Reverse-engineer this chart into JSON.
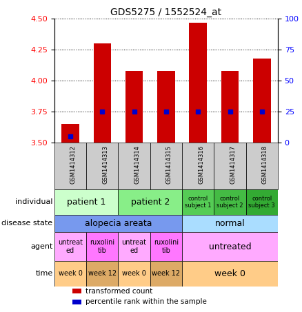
{
  "title": "GDS5275 / 1552524_at",
  "samples": [
    "GSM1414312",
    "GSM1414313",
    "GSM1414314",
    "GSM1414315",
    "GSM1414316",
    "GSM1414317",
    "GSM1414318"
  ],
  "transformed_count": [
    3.65,
    4.3,
    4.08,
    4.08,
    4.47,
    4.08,
    4.18
  ],
  "percentile_rank": [
    5,
    25,
    25,
    25,
    25,
    25,
    25
  ],
  "ylim_left": [
    3.5,
    4.5
  ],
  "ylim_right": [
    0,
    100
  ],
  "yticks_left": [
    3.5,
    3.75,
    4.0,
    4.25,
    4.5
  ],
  "yticks_right": [
    0,
    25,
    50,
    75,
    100
  ],
  "bar_color": "#cc0000",
  "dot_color": "#0000cc",
  "sample_box_color": "#cccccc",
  "annotation_rows": {
    "individual": {
      "label": "individual",
      "groups": [
        {
          "text": "patient 1",
          "span": [
            0,
            2
          ],
          "color": "#ccffcc",
          "fontsize": 9
        },
        {
          "text": "patient 2",
          "span": [
            2,
            4
          ],
          "color": "#88ee88",
          "fontsize": 9
        },
        {
          "text": "control\nsubject 1",
          "span": [
            4,
            5
          ],
          "color": "#55cc55",
          "fontsize": 6
        },
        {
          "text": "control\nsubject 2",
          "span": [
            5,
            6
          ],
          "color": "#44bb44",
          "fontsize": 6
        },
        {
          "text": "control\nsubject 3",
          "span": [
            6,
            7
          ],
          "color": "#33aa33",
          "fontsize": 6
        }
      ]
    },
    "disease_state": {
      "label": "disease state",
      "groups": [
        {
          "text": "alopecia areata",
          "span": [
            0,
            4
          ],
          "color": "#7799ee",
          "fontsize": 9
        },
        {
          "text": "normal",
          "span": [
            4,
            7
          ],
          "color": "#aaddff",
          "fontsize": 9
        }
      ]
    },
    "agent": {
      "label": "agent",
      "groups": [
        {
          "text": "untreat\ned",
          "span": [
            0,
            1
          ],
          "color": "#ffaaff",
          "fontsize": 7
        },
        {
          "text": "ruxolini\ntib",
          "span": [
            1,
            2
          ],
          "color": "#ff77ff",
          "fontsize": 7
        },
        {
          "text": "untreat\ned",
          "span": [
            2,
            3
          ],
          "color": "#ffaaff",
          "fontsize": 7
        },
        {
          "text": "ruxolini\ntib",
          "span": [
            3,
            4
          ],
          "color": "#ff77ff",
          "fontsize": 7
        },
        {
          "text": "untreated",
          "span": [
            4,
            7
          ],
          "color": "#ffaaff",
          "fontsize": 9
        }
      ]
    },
    "time": {
      "label": "time",
      "groups": [
        {
          "text": "week 0",
          "span": [
            0,
            1
          ],
          "color": "#ffcc88",
          "fontsize": 7
        },
        {
          "text": "week 12",
          "span": [
            1,
            2
          ],
          "color": "#ddaa66",
          "fontsize": 7
        },
        {
          "text": "week 0",
          "span": [
            2,
            3
          ],
          "color": "#ffcc88",
          "fontsize": 7
        },
        {
          "text": "week 12",
          "span": [
            3,
            4
          ],
          "color": "#ddaa66",
          "fontsize": 7
        },
        {
          "text": "week 0",
          "span": [
            4,
            7
          ],
          "color": "#ffcc88",
          "fontsize": 9
        }
      ]
    }
  },
  "legend": [
    {
      "color": "#cc0000",
      "label": "transformed count"
    },
    {
      "color": "#0000cc",
      "label": "percentile rank within the sample"
    }
  ]
}
